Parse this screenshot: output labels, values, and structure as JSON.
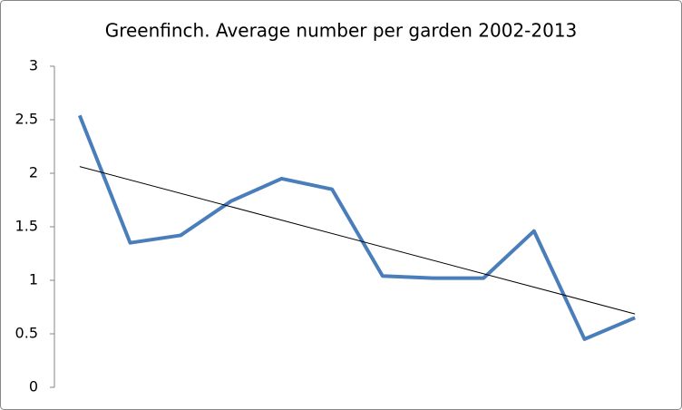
{
  "chart_data": {
    "type": "line",
    "title": "Greenfinch. Average number per garden 2002-2013",
    "categories": [
      null,
      null,
      null,
      null,
      null,
      null,
      null,
      null,
      null,
      null,
      null,
      null
    ],
    "values": [
      2.54,
      1.35,
      1.42,
      1.74,
      1.95,
      1.85,
      1.04,
      1.02,
      1.02,
      1.46,
      0.45,
      0.65
    ],
    "color": "#4a7ebb",
    "trendline": "linear",
    "trendline_color": "#000000",
    "ylim": [
      0,
      3
    ],
    "yticks": [
      0,
      0.5,
      1,
      1.5,
      2,
      2.5,
      3
    ],
    "grid": false
  }
}
